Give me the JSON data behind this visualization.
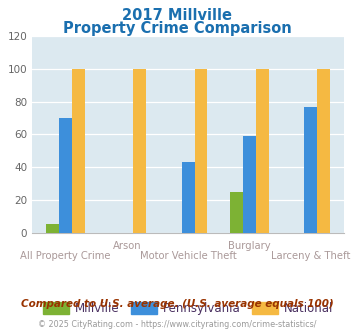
{
  "title_line1": "2017 Millville",
  "title_line2": "Property Crime Comparison",
  "title_color": "#1a6faf",
  "groups": [
    "All Property Crime",
    "Arson",
    "Motor Vehicle Theft",
    "Burglary",
    "Larceny & Theft"
  ],
  "millville": [
    5,
    0,
    0,
    25,
    0
  ],
  "pennsylvania": [
    70,
    0,
    43,
    59,
    77
  ],
  "national": [
    100,
    100,
    100,
    100,
    100
  ],
  "millville_color": "#7db234",
  "pennsylvania_color": "#3d8fdb",
  "national_color": "#f5b942",
  "ylim": [
    0,
    120
  ],
  "yticks": [
    0,
    20,
    40,
    60,
    80,
    100,
    120
  ],
  "bg_color": "#dce9f0",
  "fig_bg_color": "#ffffff",
  "legend_labels": [
    "Millville",
    "Pennsylvania",
    "National"
  ],
  "legend_text_color": "#4a3060",
  "footnote1": "Compared to U.S. average. (U.S. average equals 100)",
  "footnote2": "© 2025 CityRating.com - https://www.cityrating.com/crime-statistics/",
  "footnote1_color": "#993300",
  "footnote2_color": "#999999",
  "xlabel_top": [
    "",
    "Arson",
    "",
    "Burglary",
    ""
  ],
  "xlabel_bottom": [
    "All Property Crime",
    "",
    "Motor Vehicle Theft",
    "",
    "Larceny & Theft"
  ],
  "xlabel_color": "#aa9999"
}
